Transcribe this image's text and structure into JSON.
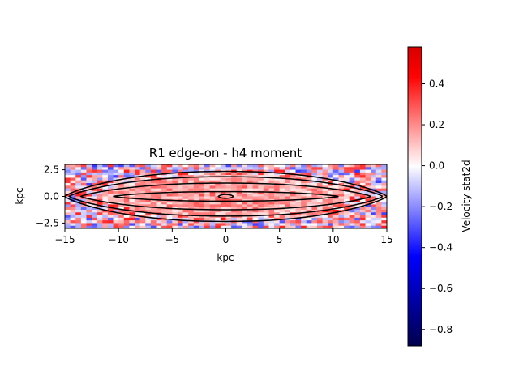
{
  "chart_data": {
    "type": "heatmap",
    "title": "R1 edge-on - h4 moment",
    "xlabel": "kpc",
    "ylabel": "kpc",
    "xlim": [
      -15,
      15
    ],
    "ylim": [
      -3,
      3
    ],
    "x_ticks": [
      -15,
      -10,
      -5,
      0,
      5,
      10,
      15
    ],
    "x_tick_labels": [
      "−15",
      "−10",
      "−5",
      "0",
      "5",
      "10",
      "15"
    ],
    "y_ticks": [
      2.5,
      0.0,
      -2.5
    ],
    "y_tick_labels": [
      "2.5",
      "0.0",
      "−2.5"
    ],
    "colorbar": {
      "label": "Velocity stat2d",
      "colormap": "seismic",
      "vmin": -0.88,
      "vmax": 0.58,
      "ticks": [
        0.4,
        0.2,
        0.0,
        -0.2,
        -0.4,
        -0.6,
        -0.8
      ],
      "tick_labels": [
        "0.4",
        "0.2",
        "0.0",
        "−0.2",
        "−0.4",
        "−0.6",
        "−0.8"
      ]
    },
    "contours": [
      {
        "level": 1,
        "half_width": 15.0,
        "half_height": 2.35
      },
      {
        "level": 2,
        "half_width": 14.6,
        "half_height": 1.85
      },
      {
        "level": 3,
        "half_width": 13.5,
        "half_height": 1.25
      },
      {
        "level": 4,
        "half_width": 10.5,
        "half_height": 0.45
      },
      {
        "level": 5,
        "half_width": 0.7,
        "half_height": 0.18
      }
    ],
    "grid": false
  }
}
